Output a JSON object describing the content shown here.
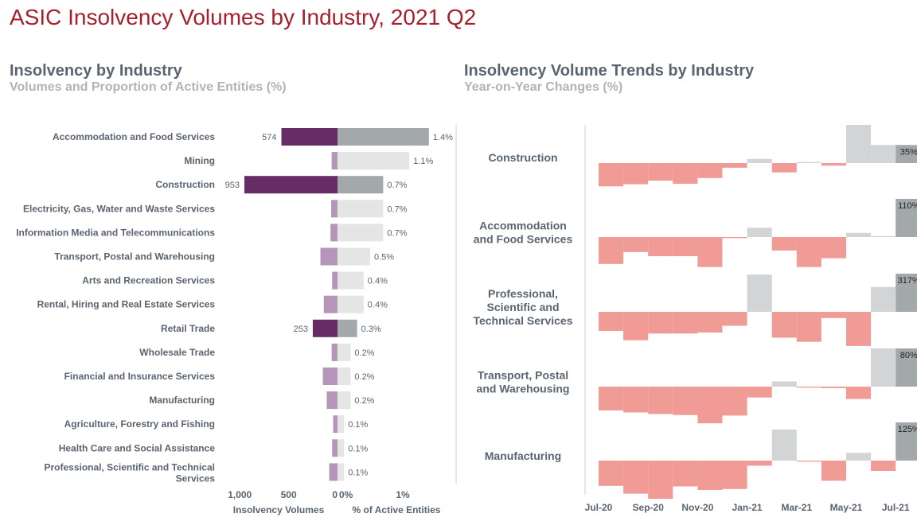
{
  "page": {
    "title": "ASIC Insolvency Volumes by Industry, 2021 Q2"
  },
  "left_panel": {
    "heading": "Insolvency by Industry",
    "subheading": "Volumes and Proportion of Active Entities (%)"
  },
  "right_panel": {
    "heading": "Insolvency Volume Trends by Industry",
    "subheading": "Year-on-Year Changes (%)"
  },
  "colors": {
    "volume_highlight": "#652c66",
    "volume_other": "#b596b8",
    "pct_highlight": "#a3a8ab",
    "pct_other": "#e5e5e5",
    "yoy_negative": "#f19b96",
    "yoy_positive": "#d2d4d6",
    "yoy_latest": "#a3a8ab"
  },
  "chart_data": [
    {
      "type": "bar",
      "orientation": "horizontal",
      "subtype": "diverging",
      "categories": [
        "Accommodation and Food Services",
        "Mining",
        "Construction",
        "Electricity, Gas, Water and Waste Services",
        "Information Media and Telecommunications",
        "Transport, Postal and Warehousing",
        "Arts and Recreation Services",
        "Rental, Hiring and Real Estate Services",
        "Retail Trade",
        "Wholesale Trade",
        "Financial and Insurance Services",
        "Manufacturing",
        "Agriculture, Forestry and Fishing",
        "Health Care and Social Assistance",
        "Professional, Scientific and Technical Services"
      ],
      "series": [
        {
          "name": "Insolvency Volumes",
          "values": [
            574,
            60,
            953,
            65,
            72,
            175,
            55,
            140,
            253,
            60,
            150,
            110,
            45,
            55,
            85
          ],
          "labels": [
            "574",
            "",
            "953",
            "",
            "",
            "",
            "",
            "",
            "253",
            "",
            "",
            "",
            "",
            "",
            ""
          ],
          "highlighted": [
            true,
            false,
            true,
            false,
            false,
            false,
            false,
            false,
            true,
            false,
            false,
            false,
            false,
            false,
            false
          ]
        },
        {
          "name": "% of Active Entities",
          "values": [
            1.4,
            1.1,
            0.7,
            0.7,
            0.7,
            0.5,
            0.4,
            0.4,
            0.3,
            0.2,
            0.2,
            0.2,
            0.1,
            0.1,
            0.1
          ],
          "labels": [
            "1.4%",
            "1.1%",
            "0.7%",
            "0.7%",
            "0.7%",
            "0.5%",
            "0.4%",
            "0.4%",
            "0.3%",
            "0.2%",
            "0.2%",
            "0.2%",
            "0.1%",
            "0.1%",
            "0.1%"
          ],
          "highlighted": [
            true,
            false,
            true,
            false,
            false,
            false,
            false,
            false,
            true,
            false,
            false,
            false,
            false,
            false,
            false
          ]
        }
      ],
      "volume_axis": {
        "label": "Insolvency Volumes",
        "range": [
          0,
          1100
        ],
        "ticks": [
          1000,
          500,
          0
        ],
        "tick_labels": [
          "1,000",
          "500",
          "0"
        ],
        "reversed": true
      },
      "pct_axis": {
        "label": "% of Active Entities",
        "range": [
          0,
          1.6
        ],
        "ticks": [
          0,
          1
        ],
        "tick_labels": [
          "0%",
          "1%"
        ]
      },
      "bar_values_shown": true
    },
    {
      "type": "bar",
      "subtype": "stepped-bar small multiples",
      "x": [
        "2020-07",
        "2020-08",
        "2020-09",
        "2020-10",
        "2020-11",
        "2020-12",
        "2021-01",
        "2021-02",
        "2021-03",
        "2021-04",
        "2021-05",
        "2021-06",
        "2021-07"
      ],
      "x_tick_labels": [
        "Jul-20",
        "Sep-20",
        "Nov-20",
        "Jan-21",
        "Mar-21",
        "May-21",
        "Jul-21"
      ],
      "series": [
        {
          "name": "Construction",
          "values": [
            -45,
            -41,
            -34,
            -40,
            -29,
            -9,
            8,
            -18,
            2,
            -5,
            75,
            35,
            35
          ],
          "latest_label": "35%"
        },
        {
          "name": "Accommodation\nand Food Services",
          "values": [
            -52,
            -29,
            -37,
            -37,
            -58,
            -2,
            18,
            -26,
            -58,
            -41,
            8,
            2,
            110
          ],
          "latest_label": "110%"
        },
        {
          "name": "Professional,\nScientific and\nTechnical Services",
          "values": [
            -37,
            -55,
            -42,
            -42,
            -40,
            -27,
            72,
            -50,
            -58,
            -12,
            -66,
            48,
            317
          ],
          "latest_label": "317%"
        },
        {
          "name": "Transport, Postal\nand Warehousing",
          "values": [
            -46,
            -50,
            -53,
            -55,
            -71,
            -56,
            -21,
            10,
            -2,
            -3,
            -24,
            90,
            80
          ],
          "latest_label": "80%"
        },
        {
          "name": "Manufacturing",
          "values": [
            -49,
            -64,
            -80,
            -50,
            -57,
            -55,
            -10,
            60,
            -2,
            -39,
            15,
            -20,
            125
          ],
          "latest_label": "125%"
        }
      ],
      "grid": false
    }
  ]
}
